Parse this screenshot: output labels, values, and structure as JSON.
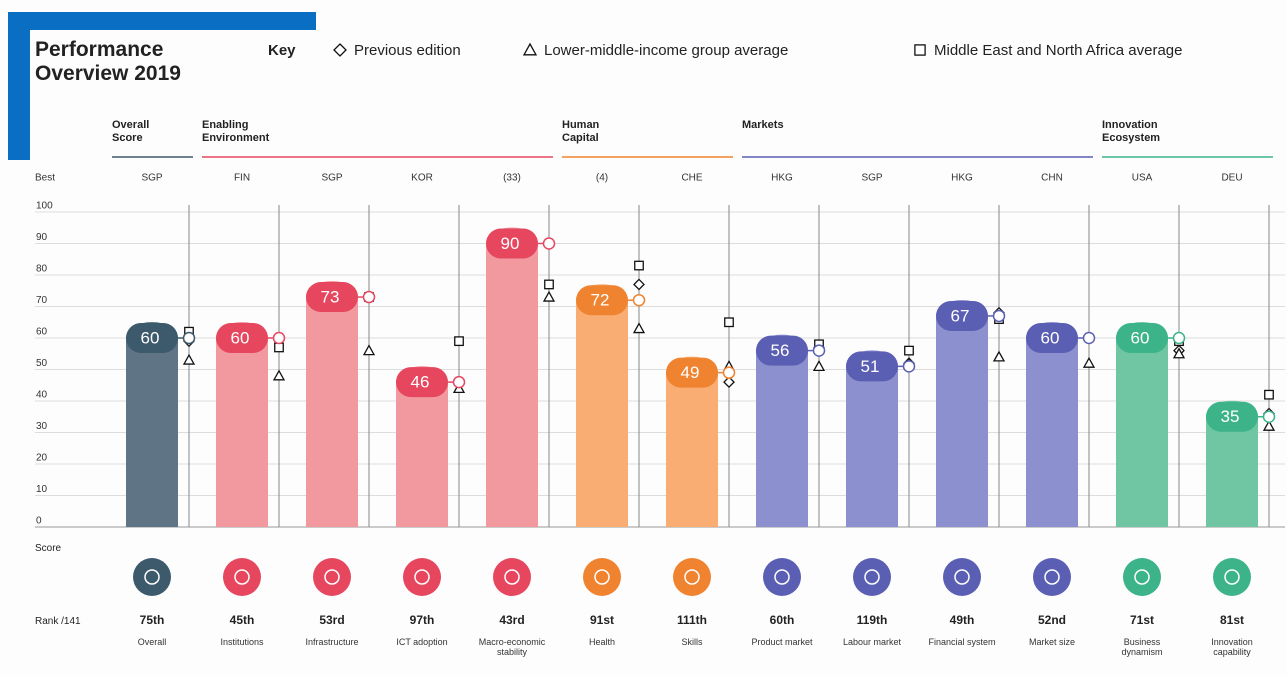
{
  "chart_data": {
    "type": "bar",
    "title": "Performance Overview 2019",
    "key_label": "Key",
    "best_label": "Best",
    "score_label": "Score",
    "rank_label": "Rank /141",
    "categories": [
      "Overall",
      "Institutions",
      "Infrastructure",
      "ICT adoption",
      "Macro-economic stability",
      "Health",
      "Skills",
      "Product market",
      "Labour market",
      "Financial system",
      "Market size",
      "Business dynamism",
      "Innovation capability"
    ],
    "groups": [
      {
        "name": "Overall Score",
        "count": 1,
        "color": "#3d5a6c",
        "bar_color": "#5f7586"
      },
      {
        "name": "Enabling Environment",
        "count": 4,
        "color": "#e6475f",
        "bar_color": "#f2989f"
      },
      {
        "name": "Human Capital",
        "count": 2,
        "color": "#f0832f",
        "bar_color": "#f9ad72"
      },
      {
        "name": "Markets",
        "count": 4,
        "color": "#5b5fb3",
        "bar_color": "#8d90cf"
      },
      {
        "name": "Innovation Ecosystem",
        "count": 2,
        "color": "#3cb389",
        "bar_color": "#70c6a2"
      }
    ],
    "best": [
      "SGP",
      "FIN",
      "SGP",
      "KOR",
      "(33)",
      "(4)",
      "CHE",
      "HKG",
      "SGP",
      "HKG",
      "CHN",
      "USA",
      "DEU"
    ],
    "values": [
      60,
      60,
      73,
      46,
      90,
      72,
      49,
      56,
      51,
      67,
      60,
      60,
      35
    ],
    "ranks": [
      "75th",
      "45th",
      "53rd",
      "97th",
      "43rd",
      "91st",
      "111th",
      "60th",
      "119th",
      "49th",
      "52nd",
      "71st",
      "81st"
    ],
    "series": [
      {
        "name": "Previous edition",
        "marker": "diamond",
        "values": [
          59,
          60,
          73,
          46,
          90,
          77,
          46,
          57,
          52,
          68,
          60,
          56,
          36
        ]
      },
      {
        "name": "Lower-middle-income group average",
        "marker": "triangle",
        "values": [
          53,
          48,
          56,
          44,
          73,
          63,
          51,
          51,
          52,
          54,
          52,
          55,
          32
        ]
      },
      {
        "name": "Middle East and North Africa average",
        "marker": "square",
        "values": [
          62,
          57,
          73,
          59,
          77,
          83,
          65,
          58,
          56,
          66,
          null,
          59,
          42
        ]
      }
    ],
    "ylim": [
      0,
      100
    ],
    "yticks": [
      0,
      10,
      20,
      30,
      40,
      50,
      60,
      70,
      80,
      90,
      100
    ],
    "grid": true
  }
}
